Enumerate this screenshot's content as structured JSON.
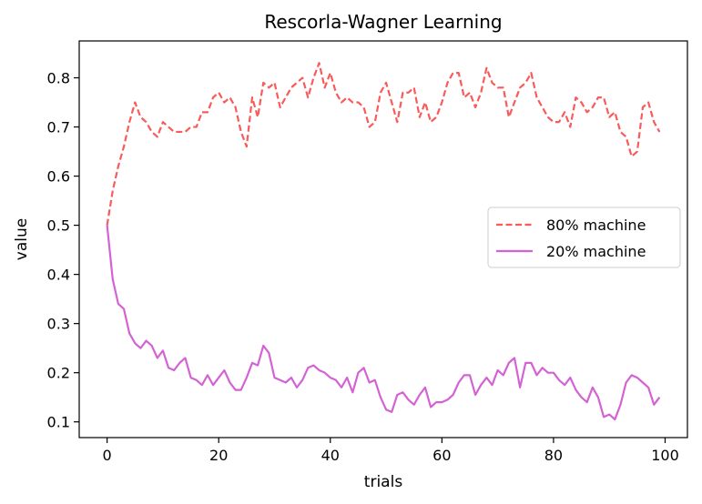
{
  "chart_data": {
    "type": "line",
    "title": "Rescorla-Wagner Learning",
    "xlabel": "trials",
    "ylabel": "value",
    "xlim": [
      -5,
      104
    ],
    "ylim": [
      0.068,
      0.875
    ],
    "x_ticks": [
      0,
      20,
      40,
      60,
      80,
      100
    ],
    "y_ticks": [
      0.1,
      0.2,
      0.3,
      0.4,
      0.5,
      0.6,
      0.7,
      0.8
    ],
    "grid": false,
    "legend_position": "center-right",
    "series": [
      {
        "name": "80% machine",
        "color": "#f95a5a",
        "style": "dashed",
        "x": [
          0,
          1,
          2,
          3,
          4,
          5,
          6,
          7,
          8,
          9,
          10,
          11,
          12,
          13,
          14,
          15,
          16,
          17,
          18,
          19,
          20,
          21,
          22,
          23,
          24,
          25,
          26,
          27,
          28,
          29,
          30,
          31,
          32,
          33,
          34,
          35,
          36,
          37,
          38,
          39,
          40,
          41,
          42,
          43,
          44,
          45,
          46,
          47,
          48,
          49,
          50,
          51,
          52,
          53,
          54,
          55,
          56,
          57,
          58,
          59,
          60,
          61,
          62,
          63,
          64,
          65,
          66,
          67,
          68,
          69,
          70,
          71,
          72,
          73,
          74,
          75,
          76,
          77,
          78,
          79,
          80,
          81,
          82,
          83,
          84,
          85,
          86,
          87,
          88,
          89,
          90,
          91,
          92,
          93,
          94,
          95,
          96,
          97,
          98,
          99
        ],
        "values": [
          0.5,
          0.57,
          0.62,
          0.66,
          0.71,
          0.75,
          0.72,
          0.71,
          0.69,
          0.68,
          0.71,
          0.7,
          0.69,
          0.69,
          0.69,
          0.7,
          0.7,
          0.73,
          0.73,
          0.76,
          0.77,
          0.75,
          0.76,
          0.74,
          0.69,
          0.66,
          0.76,
          0.72,
          0.79,
          0.78,
          0.79,
          0.74,
          0.76,
          0.78,
          0.79,
          0.8,
          0.76,
          0.8,
          0.83,
          0.78,
          0.81,
          0.77,
          0.75,
          0.76,
          0.75,
          0.75,
          0.74,
          0.7,
          0.71,
          0.77,
          0.79,
          0.75,
          0.71,
          0.77,
          0.77,
          0.78,
          0.72,
          0.75,
          0.71,
          0.72,
          0.75,
          0.79,
          0.81,
          0.81,
          0.76,
          0.77,
          0.74,
          0.77,
          0.82,
          0.79,
          0.78,
          0.78,
          0.72,
          0.75,
          0.78,
          0.79,
          0.81,
          0.76,
          0.74,
          0.72,
          0.71,
          0.71,
          0.73,
          0.7,
          0.76,
          0.75,
          0.73,
          0.74,
          0.76,
          0.76,
          0.72,
          0.73,
          0.69,
          0.68,
          0.64,
          0.65,
          0.74,
          0.75,
          0.71,
          0.69
        ]
      },
      {
        "name": "20% machine",
        "color": "#d462d4",
        "style": "solid",
        "x": [
          0,
          1,
          2,
          3,
          4,
          5,
          6,
          7,
          8,
          9,
          10,
          11,
          12,
          13,
          14,
          15,
          16,
          17,
          18,
          19,
          20,
          21,
          22,
          23,
          24,
          25,
          26,
          27,
          28,
          29,
          30,
          31,
          32,
          33,
          34,
          35,
          36,
          37,
          38,
          39,
          40,
          41,
          42,
          43,
          44,
          45,
          46,
          47,
          48,
          49,
          50,
          51,
          52,
          53,
          54,
          55,
          56,
          57,
          58,
          59,
          60,
          61,
          62,
          63,
          64,
          65,
          66,
          67,
          68,
          69,
          70,
          71,
          72,
          73,
          74,
          75,
          76,
          77,
          78,
          79,
          80,
          81,
          82,
          83,
          84,
          85,
          86,
          87,
          88,
          89,
          90,
          91,
          92,
          93,
          94,
          95,
          96,
          97,
          98,
          99
        ],
        "values": [
          0.5,
          0.39,
          0.34,
          0.33,
          0.28,
          0.26,
          0.25,
          0.265,
          0.255,
          0.23,
          0.245,
          0.21,
          0.205,
          0.22,
          0.23,
          0.19,
          0.185,
          0.175,
          0.195,
          0.175,
          0.19,
          0.205,
          0.18,
          0.165,
          0.165,
          0.19,
          0.22,
          0.215,
          0.255,
          0.24,
          0.19,
          0.185,
          0.18,
          0.19,
          0.17,
          0.185,
          0.21,
          0.215,
          0.205,
          0.2,
          0.19,
          0.185,
          0.17,
          0.19,
          0.16,
          0.2,
          0.21,
          0.18,
          0.185,
          0.15,
          0.125,
          0.12,
          0.155,
          0.16,
          0.145,
          0.135,
          0.155,
          0.17,
          0.13,
          0.14,
          0.14,
          0.145,
          0.155,
          0.18,
          0.195,
          0.195,
          0.155,
          0.175,
          0.19,
          0.175,
          0.205,
          0.195,
          0.22,
          0.23,
          0.17,
          0.22,
          0.22,
          0.195,
          0.21,
          0.2,
          0.2,
          0.185,
          0.175,
          0.19,
          0.165,
          0.15,
          0.14,
          0.17,
          0.15,
          0.11,
          0.115,
          0.105,
          0.135,
          0.18,
          0.195,
          0.19,
          0.18,
          0.17,
          0.135,
          0.15
        ]
      }
    ]
  }
}
